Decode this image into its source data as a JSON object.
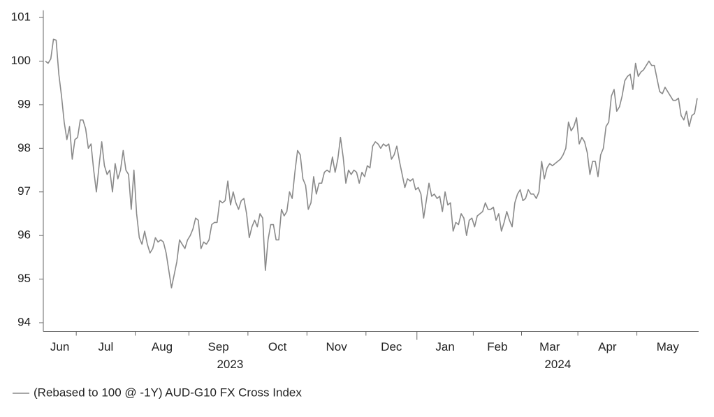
{
  "chart_data": {
    "type": "line",
    "categories": [
      "Jun",
      null,
      null,
      null,
      null,
      null,
      null,
      null,
      null,
      null,
      null,
      null,
      "Jul",
      null,
      null,
      null,
      null,
      null,
      null,
      null,
      null,
      null,
      null,
      null,
      null,
      null,
      null,
      null,
      null,
      null,
      null,
      null,
      null,
      null,
      "Aug",
      null,
      null,
      null,
      null,
      null,
      null,
      null,
      null,
      null,
      null,
      null,
      null,
      null,
      null,
      null,
      null,
      null,
      null,
      null,
      "Sep",
      null,
      null,
      null,
      null,
      null,
      null,
      null,
      null,
      null,
      null,
      null,
      null,
      null,
      null,
      null,
      null,
      null,
      null,
      null,
      null,
      null,
      "Oct",
      null,
      null,
      null,
      null,
      null,
      null,
      null,
      null,
      null,
      null,
      null,
      null,
      null,
      null,
      null,
      null,
      null,
      null,
      null,
      null,
      null,
      "Nov",
      null,
      null,
      null,
      null,
      null,
      null,
      null,
      null,
      null,
      null,
      null,
      null,
      null,
      null,
      null,
      null,
      null,
      null,
      null,
      null,
      null,
      "Dec",
      null,
      null,
      null,
      null,
      null,
      null,
      null,
      null,
      null,
      null,
      null,
      null,
      null,
      null,
      null,
      null,
      null,
      null,
      "Jan",
      null,
      null,
      null,
      null,
      null,
      null,
      null,
      null,
      null,
      null,
      null,
      null,
      null,
      null,
      null,
      null,
      null,
      null,
      null,
      null,
      "Feb",
      null,
      null,
      null,
      null,
      null,
      null,
      null,
      null,
      null,
      null,
      null,
      null,
      null,
      null,
      null,
      null,
      null,
      "Mar",
      null,
      null,
      null,
      null,
      null,
      null,
      null,
      null,
      null,
      null,
      null,
      null,
      null,
      null,
      null,
      null,
      null,
      null,
      null,
      null,
      "Apr",
      null,
      null,
      null,
      null,
      null,
      null,
      null,
      null,
      null,
      null,
      null,
      null,
      null,
      null,
      null,
      null,
      null,
      null,
      null,
      null,
      null,
      "May",
      null,
      null,
      null,
      null,
      null,
      null,
      null,
      null,
      null,
      null,
      null,
      null,
      null,
      null,
      null,
      null,
      null,
      null,
      null,
      null,
      null,
      null
    ],
    "category_groups": [
      "2023",
      null,
      null,
      null,
      null,
      null,
      null,
      null,
      null,
      null,
      null,
      null,
      null,
      null,
      null,
      null,
      null,
      null,
      null,
      null,
      null,
      null,
      null,
      null,
      null,
      null,
      null,
      null,
      null,
      null,
      null,
      null,
      null,
      null,
      null,
      null,
      null,
      null,
      null,
      null,
      null,
      null,
      null,
      null,
      null,
      null,
      null,
      null,
      null,
      null,
      null,
      null,
      null,
      null,
      null,
      null,
      null,
      null,
      null,
      null,
      null,
      null,
      null,
      null,
      null,
      null,
      null,
      null,
      null,
      null,
      null,
      null,
      null,
      null,
      null,
      null,
      null,
      null,
      null,
      null,
      null,
      null,
      null,
      null,
      null,
      null,
      null,
      null,
      null,
      null,
      null,
      null,
      null,
      null,
      null,
      null,
      null,
      null,
      null,
      null,
      null,
      null,
      null,
      null,
      null,
      null,
      null,
      null,
      null,
      null,
      null,
      null,
      null,
      null,
      null,
      null,
      null,
      null,
      null,
      null,
      null,
      null,
      null,
      null,
      null,
      null,
      null,
      null,
      null,
      null,
      null,
      null,
      null,
      null,
      null,
      null,
      null,
      null,
      null,
      "2024",
      null,
      null,
      null,
      null,
      null,
      null,
      null,
      null,
      null,
      null,
      null,
      null,
      null,
      null,
      null,
      null,
      null,
      null,
      null,
      null,
      null,
      null,
      null,
      null,
      null,
      null,
      null,
      null,
      null,
      null,
      null,
      null,
      null,
      null,
      null,
      null,
      null,
      null,
      null,
      null,
      null,
      null,
      null,
      null,
      null,
      null,
      null,
      null,
      null,
      null,
      null,
      null,
      null,
      null,
      null,
      null,
      null,
      null,
      null,
      null,
      null,
      null,
      null,
      null,
      null,
      null,
      null,
      null,
      null,
      null,
      null,
      null,
      null,
      null,
      null,
      null,
      null,
      null,
      null,
      null,
      null,
      null,
      null,
      null,
      null,
      null,
      null,
      null,
      null,
      null,
      null,
      null,
      null,
      null,
      null,
      null,
      null,
      null,
      null,
      null,
      null,
      null,
      null,
      null
    ],
    "series": [
      {
        "name": "(Rebased to 100 @ -1Y) AUD-G10 FX Cross Index",
        "color": "#8a8a8a",
        "values": [
          100.0,
          99.95,
          100.05,
          100.5,
          100.48,
          99.7,
          99.2,
          98.6,
          98.2,
          98.5,
          97.75,
          98.2,
          98.25,
          98.65,
          98.65,
          98.45,
          98.0,
          98.1,
          97.5,
          97.0,
          97.6,
          98.15,
          97.6,
          97.4,
          97.5,
          97.0,
          97.65,
          97.3,
          97.5,
          97.95,
          97.5,
          97.4,
          96.6,
          97.5,
          96.5,
          95.95,
          95.8,
          96.1,
          95.8,
          95.6,
          95.7,
          95.95,
          95.85,
          95.9,
          95.85,
          95.6,
          95.2,
          94.8,
          95.1,
          95.4,
          95.9,
          95.8,
          95.7,
          95.9,
          96.0,
          96.15,
          96.4,
          96.35,
          95.7,
          95.85,
          95.8,
          95.9,
          96.25,
          96.3,
          96.3,
          96.8,
          96.75,
          96.8,
          97.25,
          96.7,
          97.0,
          96.75,
          96.6,
          96.8,
          96.85,
          96.5,
          95.95,
          96.2,
          96.35,
          96.2,
          96.5,
          96.4,
          95.2,
          95.9,
          96.25,
          96.25,
          95.9,
          95.9,
          96.6,
          96.45,
          96.55,
          97.0,
          96.85,
          97.45,
          97.95,
          97.85,
          97.3,
          97.15,
          96.6,
          96.75,
          97.35,
          96.95,
          97.2,
          97.2,
          97.45,
          97.5,
          97.45,
          97.8,
          97.45,
          97.75,
          98.25,
          97.8,
          97.2,
          97.5,
          97.4,
          97.5,
          97.45,
          97.2,
          97.45,
          97.35,
          97.6,
          97.55,
          98.05,
          98.15,
          98.1,
          98.0,
          98.1,
          98.05,
          98.1,
          97.75,
          97.85,
          98.05,
          97.7,
          97.4,
          97.1,
          97.3,
          97.25,
          97.3,
          97.05,
          97.1,
          96.95,
          96.4,
          96.8,
          97.2,
          96.9,
          96.95,
          96.85,
          96.9,
          96.55,
          97.0,
          96.7,
          96.75,
          96.1,
          96.3,
          96.25,
          96.5,
          96.4,
          96.0,
          96.35,
          96.4,
          96.2,
          96.45,
          96.5,
          96.55,
          96.75,
          96.6,
          96.6,
          96.65,
          96.35,
          96.5,
          96.1,
          96.3,
          96.55,
          96.35,
          96.2,
          96.75,
          96.95,
          97.05,
          96.8,
          96.85,
          97.05,
          96.95,
          96.95,
          96.85,
          97.0,
          97.7,
          97.3,
          97.55,
          97.65,
          97.6,
          97.65,
          97.7,
          97.75,
          97.85,
          98.0,
          98.6,
          98.4,
          98.5,
          98.7,
          98.1,
          98.25,
          98.15,
          97.9,
          97.4,
          97.7,
          97.7,
          97.35,
          97.85,
          98.0,
          98.5,
          98.6,
          99.2,
          99.35,
          98.85,
          98.95,
          99.2,
          99.55,
          99.65,
          99.7,
          99.35,
          99.95,
          99.65,
          99.75,
          99.8,
          99.9,
          100.0,
          99.9,
          99.9,
          99.6,
          99.3,
          99.25,
          99.4,
          99.3,
          99.2,
          99.1,
          99.1,
          99.15,
          98.75,
          98.65,
          98.85,
          98.5,
          98.75,
          98.8,
          99.15
        ]
      }
    ],
    "ylim": [
      93.8,
      101.1
    ],
    "yticks": [
      94,
      95,
      96,
      97,
      98,
      99,
      100,
      101
    ],
    "grid": false,
    "legend": "bottom-left"
  }
}
